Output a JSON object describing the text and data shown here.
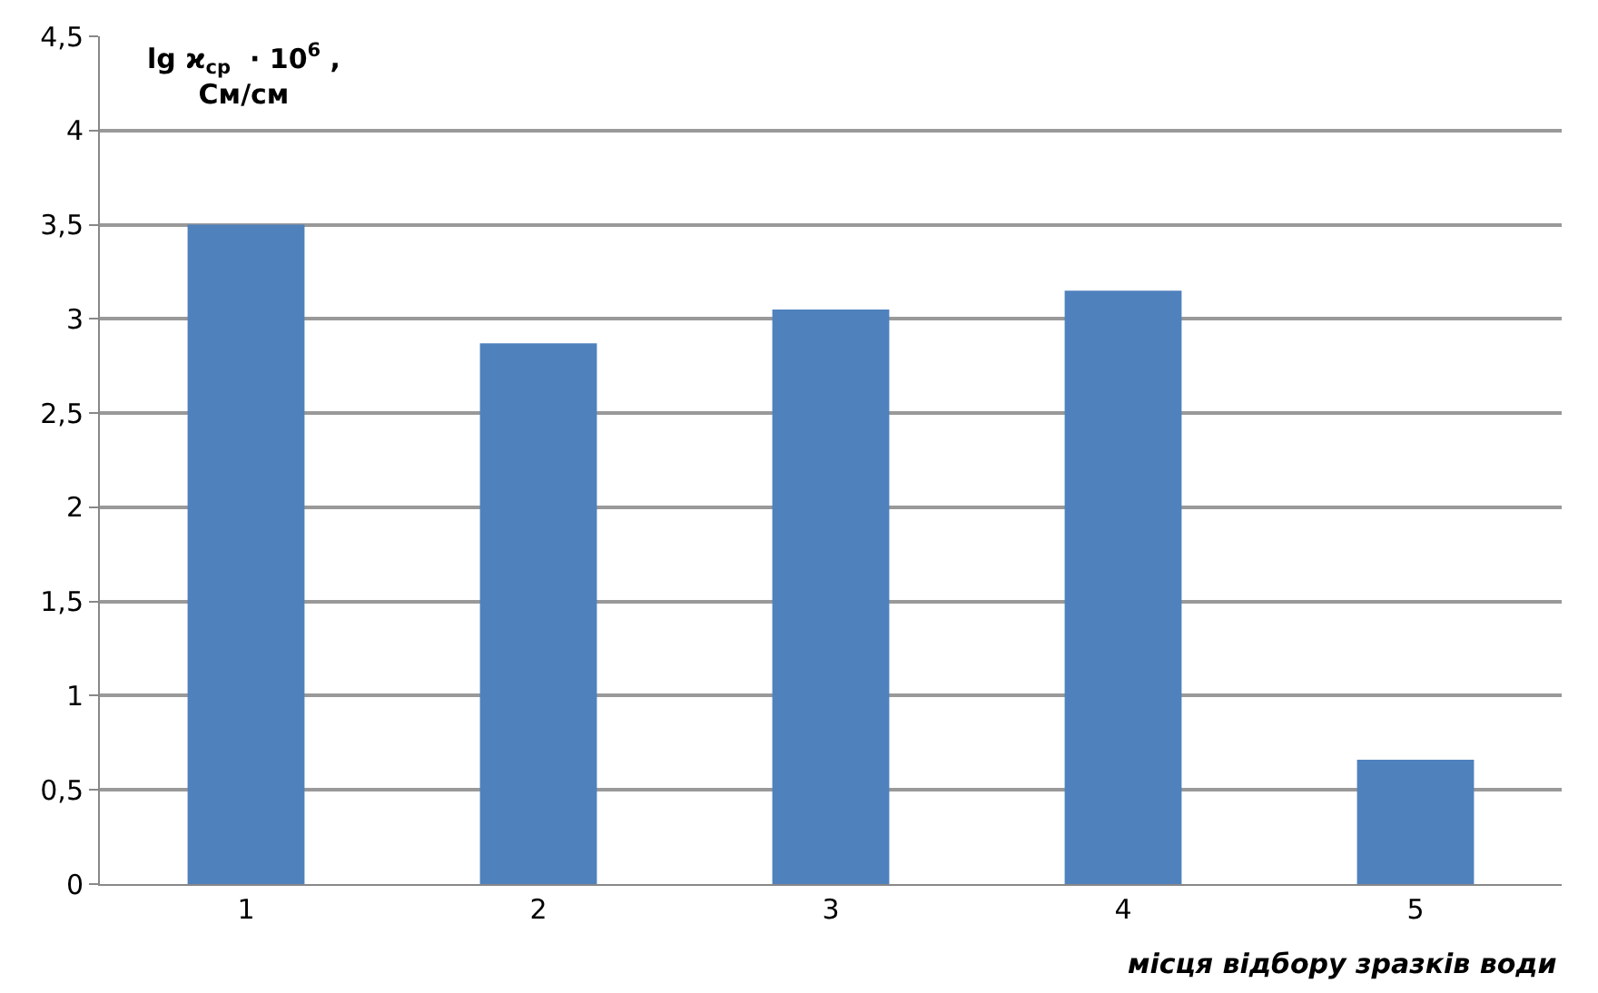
{
  "chart_data": {
    "type": "bar",
    "ylabel": "lg ϰ$_{ср}$  · 10$^{6}$ ,\nСм/см",
    "xlabel": "місця відбору зразків води",
    "categories": [
      "1",
      "2",
      "3",
      "4",
      "5"
    ],
    "values": [
      3.5,
      2.87,
      3.05,
      3.15,
      0.66
    ],
    "color": "#4f81bd",
    "ylim": [
      0,
      4.5
    ],
    "yticks": [
      0,
      {
        "value": 0.5,
        "label": "0,5"
      },
      1,
      {
        "value": 1.5,
        "label": "1,5"
      },
      2,
      {
        "value": 2.5,
        "label": "2,5"
      },
      3,
      {
        "value": 3.5,
        "label": "3,5"
      },
      4,
      {
        "value": 4.5,
        "label": "4,5"
      }
    ],
    "grid": "y"
  }
}
